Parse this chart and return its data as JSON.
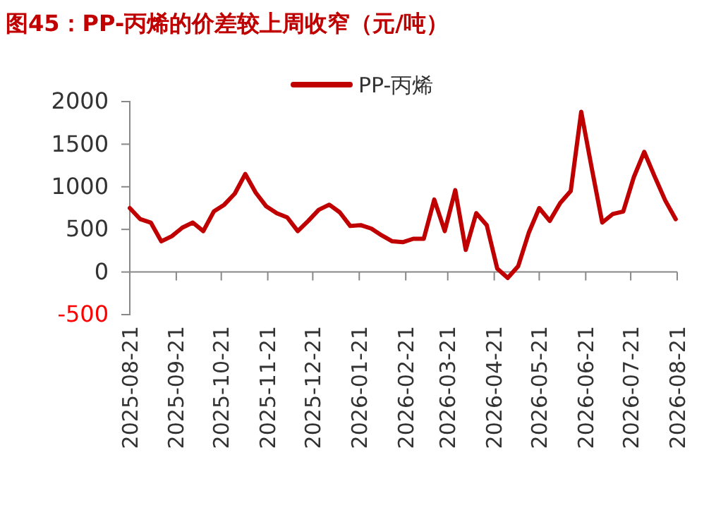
{
  "chart_data": {
    "type": "line",
    "title": "图45：PP-丙烯的价差较上周收窄（元/吨）",
    "x": [
      "2025-08-21",
      "2025-08-28",
      "2025-09-04",
      "2025-09-11",
      "2025-09-18",
      "2025-09-25",
      "2025-10-02",
      "2025-10-09",
      "2025-10-16",
      "2025-10-23",
      "2025-10-30",
      "2025-11-06",
      "2025-11-13",
      "2025-11-20",
      "2025-11-27",
      "2025-12-04",
      "2025-12-11",
      "2025-12-18",
      "2025-12-25",
      "2026-01-01",
      "2026-01-08",
      "2026-01-15",
      "2026-01-22",
      "2026-01-29",
      "2026-02-05",
      "2026-02-12",
      "2026-02-19",
      "2026-02-26",
      "2026-03-05",
      "2026-03-12",
      "2026-03-19",
      "2026-03-26",
      "2026-04-02",
      "2026-04-09",
      "2026-04-16",
      "2026-04-23",
      "2026-04-30",
      "2026-05-07",
      "2026-05-14",
      "2026-05-21",
      "2026-05-28",
      "2026-06-04",
      "2026-06-11",
      "2026-06-18",
      "2026-06-25",
      "2026-07-02",
      "2026-07-09",
      "2026-07-16",
      "2026-07-23",
      "2026-07-30",
      "2026-08-06",
      "2026-08-13",
      "2026-08-20"
    ],
    "series": [
      {
        "name": "PP-丙烯",
        "color": "#c00000",
        "values": [
          750,
          620,
          580,
          360,
          420,
          520,
          580,
          480,
          710,
          790,
          920,
          1150,
          930,
          770,
          690,
          640,
          480,
          600,
          730,
          790,
          700,
          540,
          550,
          510,
          430,
          360,
          350,
          390,
          390,
          850,
          480,
          960,
          260,
          690,
          550,
          40,
          -70,
          70,
          460,
          750,
          600,
          810,
          950,
          1880,
          1220,
          580,
          680,
          710,
          1110,
          1410,
          1120,
          840,
          620
        ]
      }
    ],
    "xlim": [
      "2025-08-21",
      "2026-08-21"
    ],
    "xticks": [
      {
        "value": "2025-08-21",
        "label": "2025-08-21"
      },
      {
        "value": "2025-09-21",
        "label": "2025-09-21"
      },
      {
        "value": "2025-10-21",
        "label": "2025-10-21"
      },
      {
        "value": "2025-11-21",
        "label": "2025-11-21"
      },
      {
        "value": "2025-12-21",
        "label": "2025-12-21"
      },
      {
        "value": "2026-01-21",
        "label": "2026-01-21"
      },
      {
        "value": "2026-02-21",
        "label": "2026-02-21"
      },
      {
        "value": "2026-03-21",
        "label": "2026-03-21"
      },
      {
        "value": "2026-04-21",
        "label": "2026-04-21"
      },
      {
        "value": "2026-05-21",
        "label": "2026-05-21"
      },
      {
        "value": "2026-06-21",
        "label": "2026-06-21"
      },
      {
        "value": "2026-07-21",
        "label": "2026-07-21"
      },
      {
        "value": "2026-08-21",
        "label": "2026-08-21"
      }
    ],
    "ylim": [
      -500,
      2000
    ],
    "yticks": [
      -500,
      0,
      500,
      1000,
      1500,
      2000
    ],
    "legend": "top",
    "grid": false,
    "marker": "none",
    "line_style": "solid"
  }
}
